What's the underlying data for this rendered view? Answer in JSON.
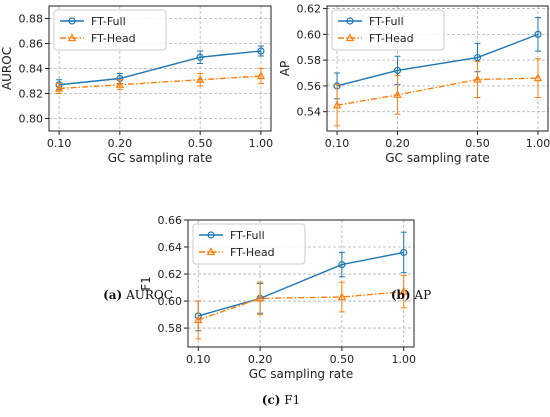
{
  "captions": [
    {
      "label": "(a)",
      "text": "AUROC"
    },
    {
      "label": "(b)",
      "text": "AP"
    },
    {
      "label": "(c)",
      "text": "F1"
    }
  ],
  "colors": {
    "ft_full": "#1f77b4",
    "ft_head": "#ff7f0e"
  },
  "chart_data": [
    {
      "type": "line",
      "xlabel": "GC sampling rate",
      "ylabel": "AUROC",
      "x": [
        0.1,
        0.2,
        0.5,
        1.0
      ],
      "x_tick_labels": [
        "0.10",
        "0.20",
        "0.50",
        "1.00"
      ],
      "x_scale": "log",
      "ylim": [
        0.79,
        0.89
      ],
      "y_ticks": [
        0.8,
        0.82,
        0.84,
        0.86,
        0.88
      ],
      "y_tick_labels": [
        "0.80",
        "0.82",
        "0.84",
        "0.86",
        "0.88"
      ],
      "grid": true,
      "legend_position": "top-left",
      "series": [
        {
          "name": "FT-Full",
          "marker": "circle",
          "linestyle": "solid",
          "values": [
            0.827,
            0.832,
            0.849,
            0.854
          ],
          "errors": [
            0.004,
            0.004,
            0.005,
            0.004
          ]
        },
        {
          "name": "FT-Head",
          "marker": "triangle",
          "linestyle": "dashdot",
          "values": [
            0.824,
            0.827,
            0.831,
            0.834
          ],
          "errors": [
            0.004,
            0.004,
            0.005,
            0.006
          ]
        }
      ]
    },
    {
      "type": "line",
      "xlabel": "GC sampling rate",
      "ylabel": "AP",
      "x": [
        0.1,
        0.2,
        0.5,
        1.0
      ],
      "x_tick_labels": [
        "0.10",
        "0.20",
        "0.50",
        "1.00"
      ],
      "x_scale": "log",
      "ylim": [
        0.525,
        0.622
      ],
      "y_ticks": [
        0.54,
        0.56,
        0.58,
        0.6,
        0.62
      ],
      "y_tick_labels": [
        "0.54",
        "0.56",
        "0.58",
        "0.60",
        "0.62"
      ],
      "grid": true,
      "legend_position": "top-left",
      "series": [
        {
          "name": "FT-Full",
          "marker": "circle",
          "linestyle": "solid",
          "values": [
            0.56,
            0.572,
            0.582,
            0.6
          ],
          "errors": [
            0.01,
            0.011,
            0.011,
            0.013
          ]
        },
        {
          "name": "FT-Head",
          "marker": "triangle",
          "linestyle": "dashdot",
          "values": [
            0.545,
            0.553,
            0.565,
            0.566
          ],
          "errors": [
            0.016,
            0.015,
            0.014,
            0.015
          ]
        }
      ]
    },
    {
      "type": "line",
      "xlabel": "GC sampling rate",
      "ylabel": "F1",
      "x": [
        0.1,
        0.2,
        0.5,
        1.0
      ],
      "x_tick_labels": [
        "0.10",
        "0.20",
        "0.50",
        "1.00"
      ],
      "x_scale": "log",
      "ylim": [
        0.566,
        0.66
      ],
      "y_ticks": [
        0.58,
        0.6,
        0.62,
        0.64,
        0.66
      ],
      "y_tick_labels": [
        "0.58",
        "0.60",
        "0.62",
        "0.64",
        "0.66"
      ],
      "grid": true,
      "legend_position": "top-left",
      "series": [
        {
          "name": "FT-Full",
          "marker": "circle",
          "linestyle": "solid",
          "values": [
            0.589,
            0.602,
            0.627,
            0.636
          ],
          "errors": [
            0.011,
            0.011,
            0.009,
            0.015
          ]
        },
        {
          "name": "FT-Head",
          "marker": "triangle",
          "linestyle": "dashdot",
          "values": [
            0.586,
            0.602,
            0.603,
            0.607
          ],
          "errors": [
            0.014,
            0.012,
            0.011,
            0.012
          ]
        }
      ]
    }
  ]
}
